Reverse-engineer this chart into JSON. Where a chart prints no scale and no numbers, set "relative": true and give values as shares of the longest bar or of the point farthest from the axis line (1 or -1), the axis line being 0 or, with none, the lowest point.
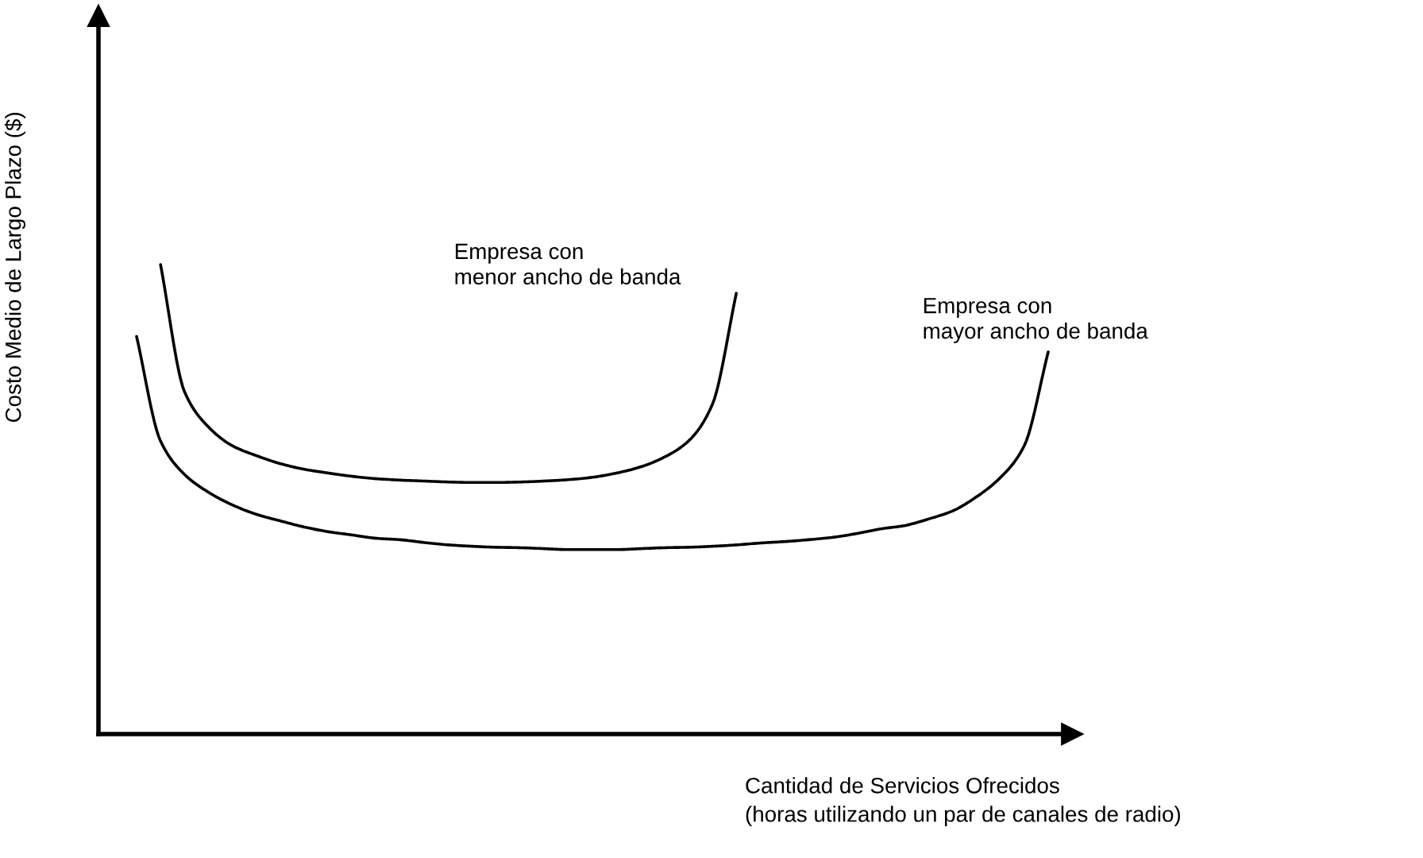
{
  "chart_data": {
    "type": "line",
    "relative": true,
    "legend": false,
    "xlabel": "Cantidad de Servicios Ofrecidos\n(horas utilizando un par de canales de radio)",
    "ylabel": "Costo Medio de Largo Plazo ($)",
    "categories": [
      null,
      null,
      null,
      null,
      null,
      null,
      null,
      null,
      null,
      null,
      null,
      null,
      null,
      null,
      null,
      null,
      null,
      null,
      null,
      null,
      null,
      null,
      null,
      null,
      null,
      null,
      null,
      null,
      null,
      null,
      null,
      null,
      null,
      null,
      null,
      null,
      null,
      null,
      null
    ],
    "series": [
      {
        "name": "Empresa con\nmenor ancho de banda",
        "color": "#000000",
        "values": [
          null,
          1,
          0.729,
          0.654,
          0.614,
          0.593,
          0.576,
          0.564,
          0.556,
          0.549,
          0.544,
          0.541,
          0.539,
          0.537,
          0.536,
          0.536,
          0.537,
          0.539,
          0.542,
          0.547,
          0.556,
          0.569,
          0.59,
          0.624,
          0.702,
          0.939,
          null,
          null,
          null,
          null,
          null,
          null,
          null,
          null,
          null,
          null,
          null,
          null,
          null
        ]
      },
      {
        "name": "Empresa con\nmayor ancho de banda",
        "color": "#000000",
        "values": [
          0.847,
          0.624,
          0.553,
          0.515,
          0.488,
          0.468,
          0.454,
          0.441,
          0.431,
          0.424,
          0.417,
          0.414,
          0.408,
          0.403,
          0.4,
          0.398,
          0.397,
          0.395,
          0.393,
          0.393,
          0.393,
          0.395,
          0.397,
          0.398,
          0.4,
          0.403,
          0.407,
          0.41,
          0.414,
          0.419,
          0.427,
          0.437,
          0.444,
          0.458,
          0.475,
          0.505,
          0.546,
          0.614,
          0.814
        ]
      }
    ]
  }
}
